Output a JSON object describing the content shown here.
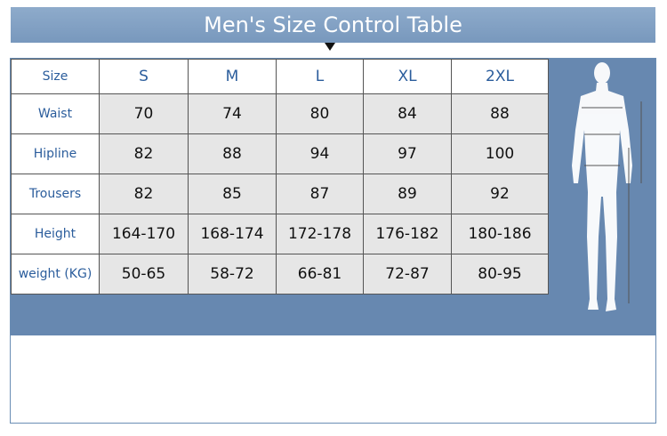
{
  "header": {
    "title": "Men's Size Control Table"
  },
  "table": {
    "columns": [
      "Size",
      "S",
      "M",
      "L",
      "XL",
      "2XL"
    ],
    "rows": [
      {
        "label": "Waist",
        "values": [
          70,
          74,
          80,
          84,
          88
        ]
      },
      {
        "label": "Hipline",
        "values": [
          82,
          88,
          94,
          97,
          100
        ]
      },
      {
        "label": "Trousers",
        "values": [
          82,
          85,
          87,
          89,
          92
        ]
      },
      {
        "label": "Height",
        "values": [
          "164-170",
          "168-174",
          "172-178",
          "176-182",
          "180-186"
        ]
      },
      {
        "label": "weight (KG)",
        "values": [
          "50-65",
          "58-72",
          "66-81",
          "72-87",
          "80-95"
        ]
      }
    ]
  }
}
